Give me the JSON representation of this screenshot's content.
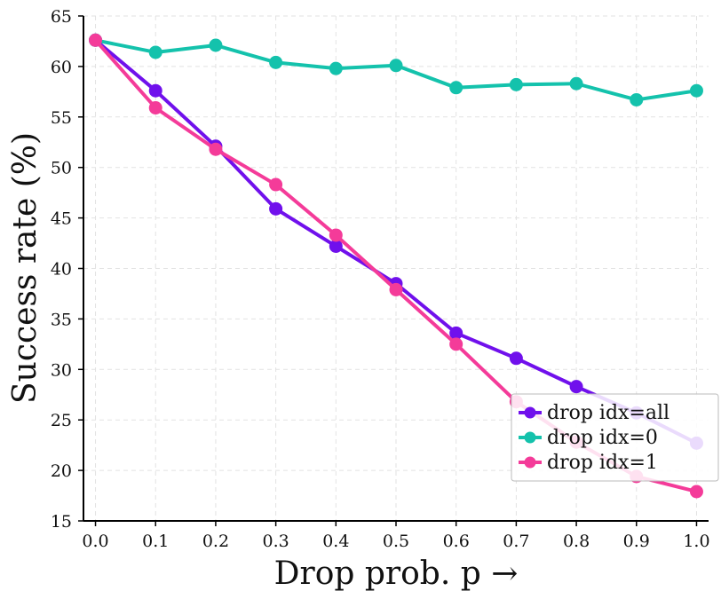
{
  "chart_data": {
    "type": "line",
    "title": "",
    "xlabel": "Drop prob. p →",
    "ylabel": "Success rate (%)",
    "x": [
      0.0,
      0.1,
      0.2,
      0.3,
      0.4,
      0.5,
      0.6,
      0.7,
      0.8,
      0.9,
      1.0
    ],
    "xlim": [
      -0.02,
      1.02
    ],
    "ylim": [
      15,
      65
    ],
    "xticks": [
      0.0,
      0.1,
      0.2,
      0.3,
      0.4,
      0.5,
      0.6,
      0.7,
      0.8,
      0.9,
      1.0
    ],
    "xtick_labels": [
      "0.0",
      "0.1",
      "0.2",
      "0.3",
      "0.4",
      "0.5",
      "0.6",
      "0.7",
      "0.8",
      "0.9",
      "1.0"
    ],
    "yticks": [
      15,
      20,
      25,
      30,
      35,
      40,
      45,
      50,
      55,
      60,
      65
    ],
    "ytick_labels": [
      "15",
      "20",
      "25",
      "30",
      "35",
      "40",
      "45",
      "50",
      "55",
      "60",
      "65"
    ],
    "grid": true,
    "legend_position": "lower-right",
    "series": [
      {
        "name": "drop idx=all",
        "color": "#7010ec",
        "values": [
          62.6,
          57.6,
          52.1,
          45.9,
          42.2,
          38.5,
          33.6,
          31.1,
          28.3,
          25.7,
          22.7
        ]
      },
      {
        "name": "drop idx=0",
        "color": "#14c2ac",
        "values": [
          62.6,
          61.4,
          62.1,
          60.4,
          59.8,
          60.1,
          57.9,
          58.2,
          58.3,
          56.7,
          57.6
        ]
      },
      {
        "name": "drop idx=1",
        "color": "#f43b99",
        "values": [
          62.6,
          55.9,
          51.8,
          48.3,
          43.3,
          37.9,
          32.5,
          26.8,
          22.8,
          19.4,
          17.9
        ]
      }
    ]
  }
}
